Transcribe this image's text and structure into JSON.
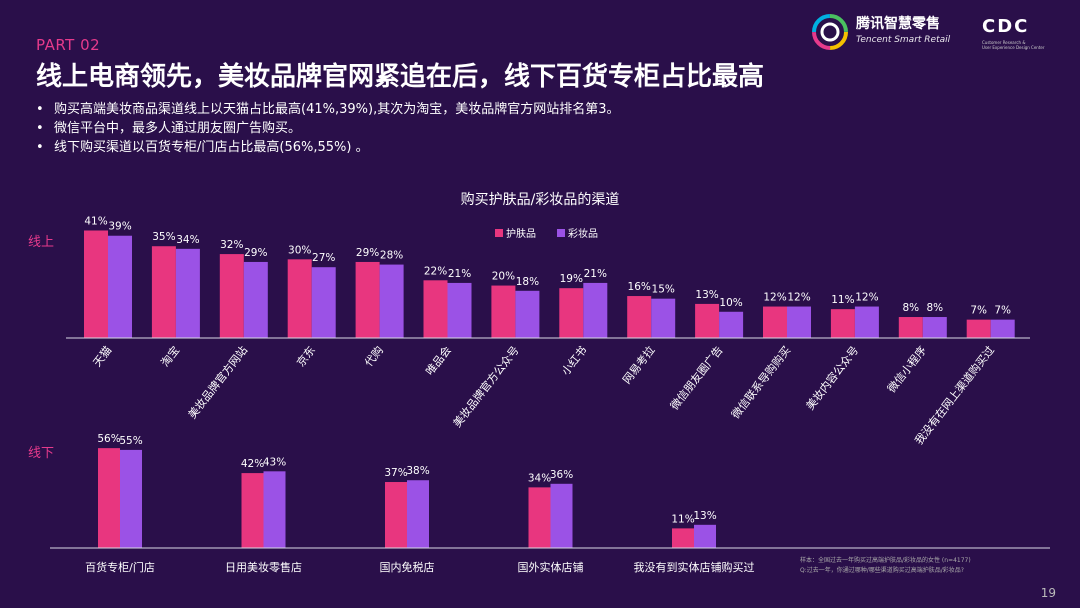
{
  "header": {
    "part": "PART 02",
    "title": "线上电商领先，美妆品牌官网紧追在后，线下百货专柜占比最高",
    "bullets": [
      "购买高端美妆商品渠道线上以天猫占比最高(41%,39%),其次为淘宝，美妆品牌官方网站排名第3。",
      "微信平台中，最多人通过朋友圈广告购买。",
      "线下购买渠道以百货专柜/门店占比最高(56%,55%) 。"
    ]
  },
  "logos": {
    "tencent_name": "腾讯智慧零售",
    "tencent_sub": "Tencent Smart Retail",
    "cdc": "CDC",
    "cdc_sub": "Customer Research &\nUser Experience Design Center"
  },
  "footnote": "样本：全国过去一年购买过高端护肤品/彩妆品的女性 (n=4177)\nQ:过去一年，你通过哪种/哪些渠道购买过高端护肤品/彩妆品?",
  "page_number": "19",
  "colors": {
    "skincare": "#e8367f",
    "makeup": "#9b52e6",
    "label": "#e63a8c",
    "background": "#2a0f4a"
  },
  "chart_data": [
    {
      "type": "bar",
      "title": "购买护肤品/彩妆品的渠道",
      "group_label": "线上",
      "legend_position": "top-center",
      "categories": [
        "天猫",
        "淘宝",
        "美妆品牌官方网站",
        "京东",
        "代购",
        "唯品会",
        "美妆品牌官方公众号",
        "小红书",
        "网易考拉",
        "微信朋友圈广告",
        "微信联系导购购买",
        "美妆内容公众号",
        "微信小程序",
        "我没有在网上渠道购买过"
      ],
      "series": [
        {
          "name": "护肤品",
          "values": [
            41,
            35,
            32,
            30,
            29,
            22,
            20,
            19,
            16,
            13,
            12,
            11,
            8,
            7
          ]
        },
        {
          "name": "彩妆品",
          "values": [
            39,
            34,
            29,
            27,
            28,
            21,
            18,
            21,
            15,
            10,
            12,
            12,
            8,
            7
          ]
        }
      ],
      "value_suffix": "%",
      "ylim": [
        0,
        45
      ],
      "grid": false
    },
    {
      "type": "bar",
      "group_label": "线下",
      "categories": [
        "百货专柜/门店",
        "日用美妆零售店",
        "国内免税店",
        "国外实体店铺",
        "我没有到实体店铺购买过"
      ],
      "series": [
        {
          "name": "护肤品",
          "values": [
            56,
            42,
            37,
            34,
            11
          ]
        },
        {
          "name": "彩妆品",
          "values": [
            55,
            43,
            38,
            36,
            13
          ]
        }
      ],
      "value_suffix": "%",
      "ylim": [
        0,
        60
      ],
      "grid": false
    }
  ]
}
